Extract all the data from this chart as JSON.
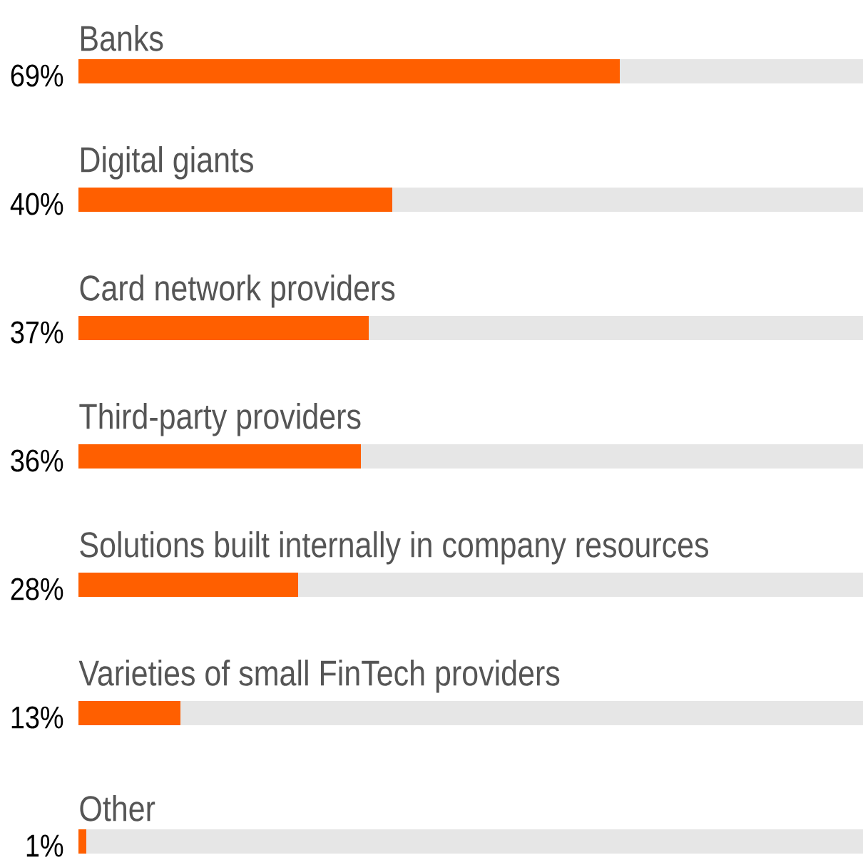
{
  "chart_data": {
    "type": "bar",
    "orientation": "horizontal",
    "categories": [
      "Banks",
      "Digital giants",
      "Card network providers",
      "Third-party providers",
      "Solutions built internally in company resources",
      "Varieties of small FinTech providers",
      "Other"
    ],
    "values": [
      69,
      40,
      37,
      36,
      28,
      13,
      1
    ],
    "value_labels": [
      "69%",
      "40%",
      "37%",
      "36%",
      "28%",
      "13%",
      "1%"
    ],
    "color": "#ff5f00",
    "xlim": [
      0,
      100
    ]
  }
}
